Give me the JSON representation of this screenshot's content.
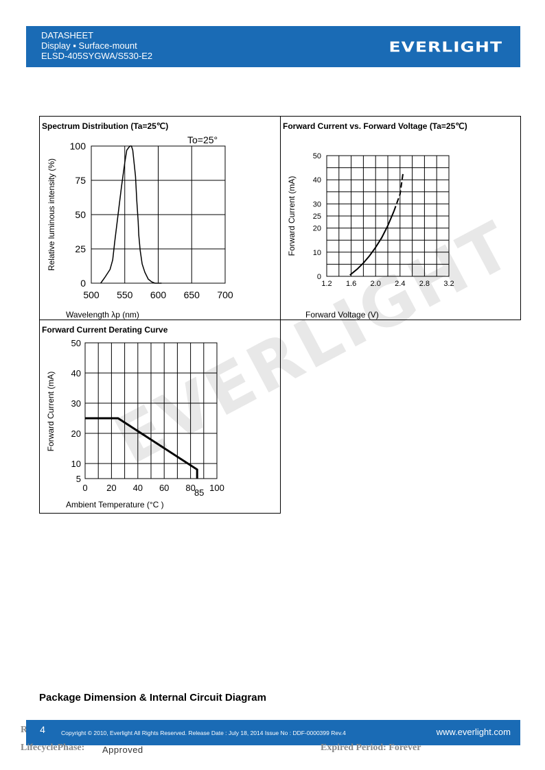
{
  "header": {
    "line1": "DATASHEET",
    "line2": "Display ▪ Surface-mount",
    "line3": "ELSD-405SYGWA/S530-E2",
    "logo": "EVERLIGHT"
  },
  "watermark": "EVERLIGHT",
  "charts": [
    {
      "title": "Spectrum Distribution (Ta=25℃)",
      "note": "To=25°",
      "xlabel": "Wavelength λp (nm)",
      "ylabel": "Relative luminous intensity (%)",
      "xticks": [
        "500",
        "550",
        "600",
        "650",
        "700"
      ],
      "yticks": [
        "100",
        "75",
        "50",
        "25",
        "0"
      ]
    },
    {
      "title": "Forward Current vs. Forward Voltage (Ta=25℃)",
      "xlabel": "Forward Voltage (V)",
      "ylabel": "Forward Current (mA)",
      "xticks": [
        "1.2",
        "1.6",
        "2.0",
        "2.4",
        "2.8",
        "3.2"
      ],
      "yticks": [
        "50",
        "40",
        "30",
        "25",
        "20",
        "10",
        "0"
      ]
    },
    {
      "title": "Forward Current Derating Curve",
      "xlabel": "Ambient Temperature (°C )",
      "ylabel": "Forward Current (mA)",
      "xticks": [
        "0",
        "20",
        "40",
        "60",
        "80",
        "100"
      ],
      "xextra": "85",
      "yticks": [
        "50",
        "40",
        "30",
        "20",
        "10",
        "5"
      ]
    }
  ],
  "chart_data": [
    {
      "type": "line",
      "title": "Spectrum Distribution (Ta=25℃)",
      "xlabel": "Wavelength λp (nm)",
      "ylabel": "Relative luminous intensity (%)",
      "xlim": [
        500,
        700
      ],
      "ylim": [
        0,
        100
      ],
      "x": [
        514,
        520,
        528,
        532,
        535,
        540,
        545,
        550,
        553,
        556,
        558,
        560,
        562,
        566,
        568,
        570,
        571,
        573,
        576,
        580,
        585,
        590,
        595,
        600,
        605
      ],
      "y": [
        0,
        4,
        10,
        17,
        30,
        50,
        70,
        88,
        97,
        99,
        100,
        100,
        97,
        78,
        60,
        45,
        35,
        24,
        14,
        8,
        3,
        1,
        0,
        0,
        0
      ]
    },
    {
      "type": "line",
      "title": "Forward Current vs. Forward Voltage (Ta=25℃)",
      "xlabel": "Forward Voltage (V)",
      "ylabel": "Forward Current (mA)",
      "xlim": [
        1.2,
        3.2
      ],
      "ylim": [
        0,
        50
      ],
      "x": [
        1.58,
        1.7,
        1.8,
        1.9,
        2.0,
        2.1,
        2.2,
        2.3,
        2.4,
        2.45
      ],
      "y": [
        0.5,
        3,
        5.5,
        8.5,
        12,
        16,
        21,
        27,
        34,
        43
      ]
    },
    {
      "type": "line",
      "title": "Forward Current Derating Curve",
      "xlabel": "Ambient Temperature (°C )",
      "ylabel": "Forward Current (mA)",
      "xlim": [
        0,
        100
      ],
      "ylim": [
        5,
        50
      ],
      "x": [
        0,
        25,
        85,
        85
      ],
      "y": [
        25,
        25,
        8,
        5
      ]
    }
  ],
  "package_title": "Package Dimension & Internal Circuit Diagram",
  "footer": {
    "page": "4",
    "copyright": "Copyright © 2010, Everlight All Rights Reserved. Release Date : July 18, 2014 Issue No : DDF-0000399 Rev.4",
    "website": "www.everlight.com"
  },
  "bottom": {
    "r_mark": "R",
    "lifecycle_label": "LifecyclePhase:",
    "lifecycle_value": "Approved",
    "expired": "Expired Period: Forever"
  }
}
